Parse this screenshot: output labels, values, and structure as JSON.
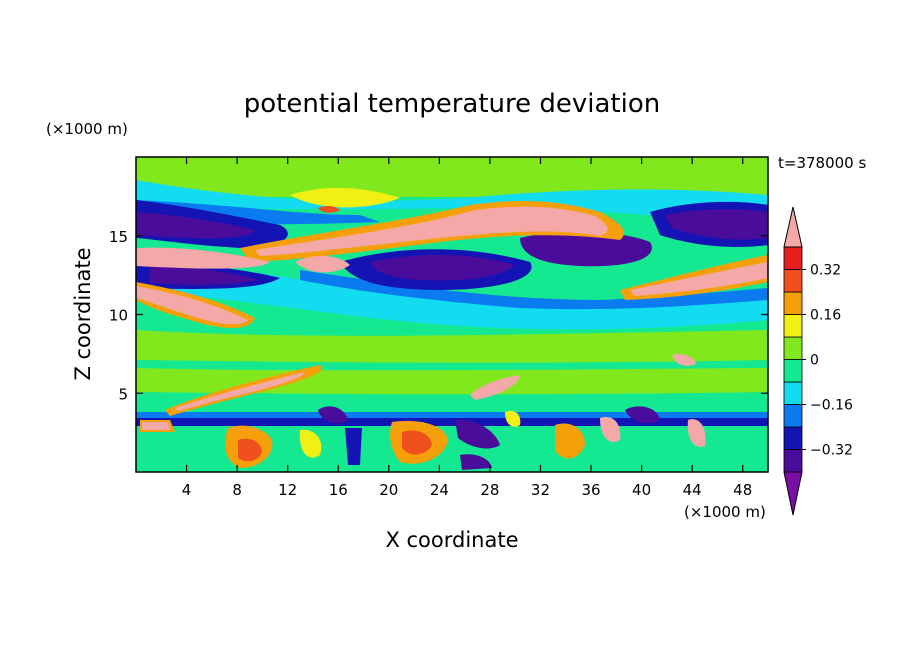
{
  "chart_data": {
    "type": "heatmap",
    "title": "potential temperature deviation",
    "xlabel": "X coordinate",
    "ylabel": "Z coordinate",
    "x_unit": "(×1000 m)",
    "y_unit": "(×1000 m)",
    "time_label": "t=378000 s",
    "xlim": [
      0,
      50
    ],
    "ylim": [
      0,
      20
    ],
    "x_ticks": [
      4,
      8,
      12,
      16,
      20,
      24,
      28,
      32,
      36,
      40,
      44,
      48
    ],
    "y_ticks": [
      5,
      10,
      15
    ],
    "colorbar": {
      "levels": [
        -0.4,
        -0.32,
        -0.24,
        -0.16,
        -0.08,
        0,
        0.08,
        0.16,
        0.24,
        0.32,
        0.4
      ],
      "labeled_levels": [
        0.32,
        0.16,
        0,
        -0.16,
        -0.32
      ],
      "colors": [
        "#7a0fa8",
        "#4a0c9a",
        "#1414b4",
        "#0a7cf0",
        "#14dcf0",
        "#14e890",
        "#82e81e",
        "#f0f014",
        "#f5a00a",
        "#f0501e",
        "#e61e1e",
        "#f5a8a8"
      ],
      "extend": "both"
    },
    "features": [
      {
        "x": [
          0,
          8
        ],
        "z": [
          10.5,
          12
        ],
        "value": "above 0.4"
      },
      {
        "x": [
          14,
          40
        ],
        "z": [
          13,
          16
        ],
        "value": "above 0.4"
      },
      {
        "x": [
          42,
          50
        ],
        "z": [
          11.5,
          13
        ],
        "value": "above 0.4"
      },
      {
        "x": [
          0,
          10
        ],
        "z": [
          15,
          16.5
        ],
        "value": "-0.32 to -0.4"
      },
      {
        "x": [
          18,
          30
        ],
        "z": [
          12,
          14
        ],
        "value": "-0.32 to -0.4"
      },
      {
        "x": [
          31,
          40
        ],
        "z": [
          13,
          15
        ],
        "value": "below -0.4"
      },
      {
        "x": [
          40,
          50
        ],
        "z": [
          14.5,
          16.5
        ],
        "value": "-0.32 to -0.4"
      },
      {
        "x": [
          8,
          12
        ],
        "z": [
          1,
          3
        ],
        "value": "0.24 to 0.32"
      },
      {
        "x": [
          20,
          28
        ],
        "z": [
          1,
          3
        ],
        "value": "0.24 to 0.32"
      },
      {
        "x": [
          0,
          50
        ],
        "z": [
          3,
          4
        ],
        "value": "-0.24 to -0.4"
      },
      {
        "x": [
          0,
          50
        ],
        "z": [
          5,
          10
        ],
        "value": "0 to 0.08"
      }
    ]
  }
}
